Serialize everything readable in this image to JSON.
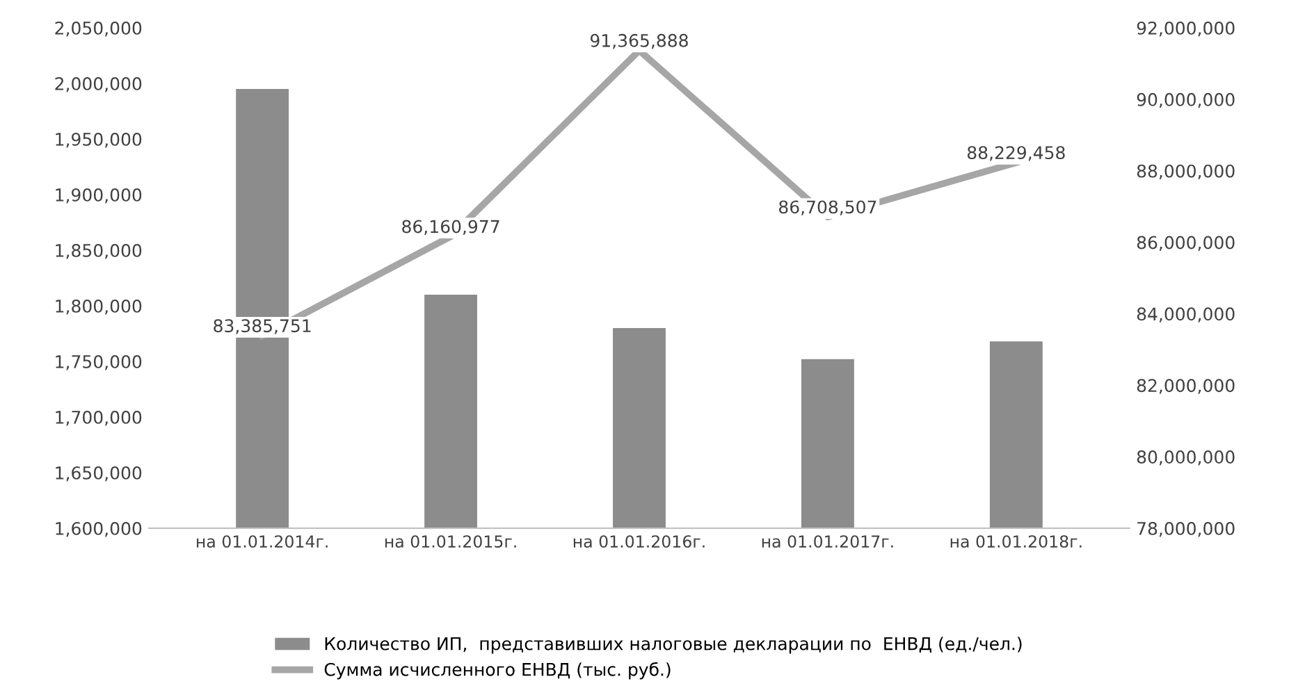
{
  "chart_data": {
    "type": "bar",
    "categories": [
      "на 01.01.2014г.",
      "на 01.01.2015г.",
      "на 01.01.2016г.",
      "на 01.01.2017г.",
      "на 01.01.2018г."
    ],
    "series": [
      {
        "name": "Количество ИП,  представивших налоговые декларации по  ЕНВД (ед./чел.)",
        "color": "#8c8c8c",
        "values": [
          1995000,
          1810000,
          1780000,
          1752000,
          1768000
        ]
      },
      {
        "name": "Сумма исчисленного ЕНВД (тыс. руб.)",
        "color": "#a6a6a6",
        "type": "line",
        "axis": "y2",
        "values": [
          83385751,
          86160977,
          91365888,
          86708507,
          88229458
        ],
        "value_labels": [
          "83,385,751",
          "86,160,977",
          "91,365,888",
          "86,708,507",
          "88,229,458"
        ]
      }
    ],
    "ylim": [
      1600000,
      2050000
    ],
    "yticks": [
      {
        "value": 1600000,
        "label": "1,600,000"
      },
      {
        "value": 1650000,
        "label": "1,650,000"
      },
      {
        "value": 1700000,
        "label": "1,700,000"
      },
      {
        "value": 1750000,
        "label": "1,750,000"
      },
      {
        "value": 1800000,
        "label": "1,800,000"
      },
      {
        "value": 1850000,
        "label": "1,850,000"
      },
      {
        "value": 1900000,
        "label": "1,900,000"
      },
      {
        "value": 1950000,
        "label": "1,950,000"
      },
      {
        "value": 2000000,
        "label": "2,000,000"
      },
      {
        "value": 2050000,
        "label": "2,050,000"
      }
    ],
    "y2lim": [
      78000000,
      92000000
    ],
    "y2ticks": [
      {
        "value": 78000000,
        "label": "78,000,000"
      },
      {
        "value": 80000000,
        "label": "80,000,000"
      },
      {
        "value": 82000000,
        "label": "82,000,000"
      },
      {
        "value": 84000000,
        "label": "84,000,000"
      },
      {
        "value": 86000000,
        "label": "86,000,000"
      },
      {
        "value": 88000000,
        "label": "88,000,000"
      },
      {
        "value": 90000000,
        "label": "90,000,000"
      },
      {
        "value": 92000000,
        "label": "92,000,000"
      }
    ],
    "legend": "bottom",
    "grid": false,
    "marker": "none",
    "line_style": "solid"
  }
}
